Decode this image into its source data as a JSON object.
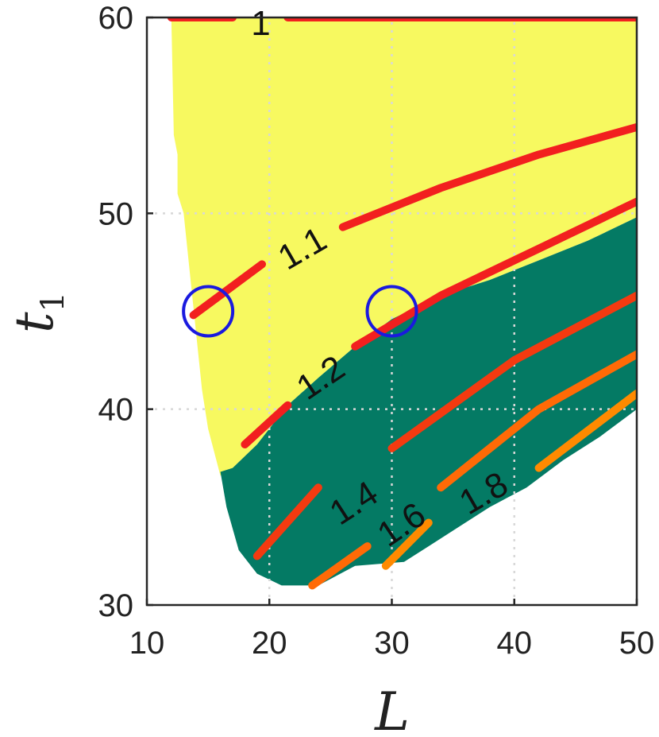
{
  "chart_data": {
    "type": "contour",
    "xlabel": "L",
    "ylabel": "t",
    "ylabel_subscript": "1",
    "xlim": [
      10,
      50
    ],
    "ylim": [
      30,
      60
    ],
    "xticks": [
      "10",
      "20",
      "30",
      "40",
      "50"
    ],
    "yticks": [
      "30",
      "40",
      "50",
      "60"
    ],
    "grid": true,
    "colors": {
      "feasible_region": "#f7f960",
      "highlight_region": "#047a64",
      "level_1": "#f21f1f",
      "level_1_8": "#ff8a00",
      "marker": "#1a1adf"
    },
    "regions": [
      {
        "name": "yellow-region",
        "color": "#f7f960",
        "boundary": [
          [
            12.0,
            60
          ],
          [
            50,
            60
          ],
          [
            50,
            49.8
          ],
          [
            46,
            48.6
          ],
          [
            42,
            47.6
          ],
          [
            38,
            46.6
          ],
          [
            34,
            45.8
          ],
          [
            30,
            44.6
          ],
          [
            27,
            43.2
          ],
          [
            24,
            41.6
          ],
          [
            21.5,
            40.2
          ],
          [
            19,
            38.2
          ],
          [
            17,
            37.0
          ],
          [
            16,
            36.6
          ],
          [
            15,
            39.0
          ],
          [
            14.5,
            41.0
          ],
          [
            14.0,
            44.0
          ],
          [
            13.5,
            47.0
          ],
          [
            13.0,
            50.0
          ],
          [
            12.5,
            51.0
          ],
          [
            12.5,
            53.0
          ],
          [
            12.2,
            54.0
          ],
          [
            12.0,
            60
          ]
        ]
      },
      {
        "name": "green-region",
        "color": "#047a64",
        "boundary": [
          [
            16.0,
            36.8
          ],
          [
            17,
            37.0
          ],
          [
            19,
            38.2
          ],
          [
            21.5,
            40.2
          ],
          [
            24,
            41.6
          ],
          [
            27,
            43.2
          ],
          [
            30,
            44.6
          ],
          [
            34,
            45.8
          ],
          [
            38,
            46.6
          ],
          [
            42,
            47.6
          ],
          [
            46,
            48.6
          ],
          [
            50,
            49.8
          ],
          [
            50,
            40.0
          ],
          [
            47,
            38.6
          ],
          [
            44,
            37.4
          ],
          [
            41,
            36.0
          ],
          [
            38,
            35.0
          ],
          [
            35,
            33.8
          ],
          [
            33,
            33.0
          ],
          [
            31,
            32.2
          ],
          [
            27,
            32.0
          ],
          [
            24,
            31.0
          ],
          [
            21,
            31.0
          ],
          [
            19,
            31.6
          ],
          [
            17.5,
            32.8
          ],
          [
            16.5,
            35.0
          ],
          [
            16.0,
            36.8
          ]
        ]
      }
    ],
    "contours": [
      {
        "level": "1",
        "color": "#f21f1f",
        "segments": [
          [
            [
              12,
              60
            ],
            [
              17,
              60
            ]
          ],
          [
            [
              21.5,
              60
            ],
            [
              50,
              60
            ]
          ]
        ],
        "label": {
          "x": 19.3,
          "y": 59.7,
          "angle": 0
        }
      },
      {
        "level": "1.1",
        "color": "#f21f1f",
        "segments": [
          [
            [
              13.8,
              44.8
            ],
            [
              19.4,
              47.4
            ]
          ],
          [
            [
              26,
              49.3
            ],
            [
              34,
              51.3
            ],
            [
              42,
              53.0
            ],
            [
              50,
              54.4
            ]
          ]
        ],
        "label": {
          "x": 22.7,
          "y": 48.2,
          "angle": -30
        }
      },
      {
        "level": "1.2",
        "color": "#f21f1f",
        "segments": [
          [
            [
              18,
              38.2
            ],
            [
              21.5,
              40.2
            ]
          ],
          [
            [
              27,
              43.2
            ],
            [
              34,
              45.8
            ],
            [
              42,
              48.2
            ],
            [
              50,
              50.6
            ]
          ]
        ],
        "label": {
          "x": 24.2,
          "y": 41.6,
          "angle": -34
        }
      },
      {
        "level": "1.4",
        "color": "#f43a10",
        "segments": [
          [
            [
              19,
              32.5
            ],
            [
              24,
              36.0
            ]
          ],
          [
            [
              30,
              38.0
            ],
            [
              40,
              42.5
            ],
            [
              50,
              45.8
            ]
          ]
        ],
        "label": {
          "x": 26.9,
          "y": 35.2,
          "angle": -33
        }
      },
      {
        "level": "1.6",
        "color": "#ff6a06",
        "segments": [
          [
            [
              23.5,
              31.0
            ],
            [
              28,
              33.0
            ]
          ],
          [
            [
              34,
              36.0
            ],
            [
              42,
              40.0
            ],
            [
              50,
              42.8
            ]
          ]
        ],
        "label": {
          "x": 30.8,
          "y": 34.1,
          "angle": -34
        }
      },
      {
        "level": "1.8",
        "color": "#ff8a00",
        "segments": [
          [
            [
              29.5,
              32.0
            ],
            [
              33,
              34.2
            ]
          ],
          [
            [
              42,
              37.0
            ],
            [
              50,
              40.8
            ]
          ]
        ],
        "label": {
          "x": 37.5,
          "y": 35.7,
          "angle": -30
        }
      }
    ],
    "markers": [
      {
        "name": "circle-marker-1",
        "x": 15,
        "y": 45
      },
      {
        "name": "circle-marker-2",
        "x": 30,
        "y": 45
      }
    ]
  }
}
